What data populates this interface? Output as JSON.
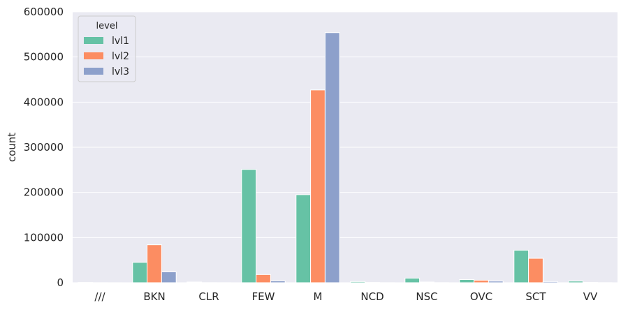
{
  "chart_data": {
    "type": "bar",
    "title": "",
    "xlabel": "",
    "ylabel": "count",
    "ylim": [
      0,
      600000
    ],
    "yticks": [
      0,
      100000,
      200000,
      300000,
      400000,
      500000,
      600000
    ],
    "grid": true,
    "legend": {
      "title": "level",
      "placement": "top-left"
    },
    "categories": [
      "///",
      "BKN",
      "CLR",
      "FEW",
      "M",
      "NCD",
      "NSC",
      "OVC",
      "SCT",
      "VV"
    ],
    "series": [
      {
        "name": "lvl1",
        "color": "#66c2a5",
        "values": [
          500,
          45000,
          1500,
          251000,
          195000,
          2500,
          10000,
          7000,
          72000,
          3500
        ]
      },
      {
        "name": "lvl2",
        "color": "#fc8d62",
        "values": [
          100,
          84000,
          300,
          18000,
          427000,
          500,
          1500,
          5500,
          54000,
          800
        ]
      },
      {
        "name": "lvl3",
        "color": "#8da0cb",
        "values": [
          50,
          24000,
          100,
          4000,
          554000,
          200,
          300,
          3500,
          2500,
          300
        ]
      }
    ]
  }
}
